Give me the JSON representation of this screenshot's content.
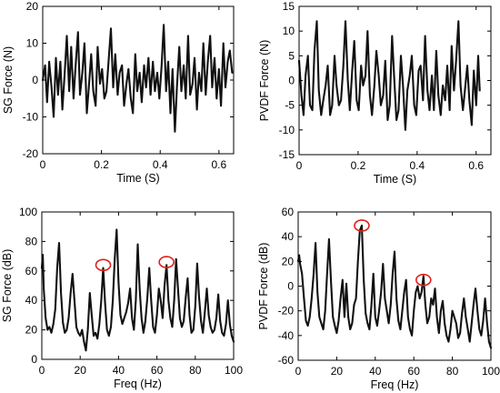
{
  "colors": {
    "trace": "#111111",
    "marker": "#e0201c",
    "axes": "#000000"
  },
  "chart_data": [
    {
      "type": "line",
      "panel": "top-left",
      "xlabel": "Time (S)",
      "ylabel": "SG Force (N)",
      "xlim": [
        0,
        0.65
      ],
      "ylim": [
        -20,
        20
      ],
      "xticks": [
        0,
        0.2,
        0.4,
        0.6
      ],
      "xtick_labels": [
        "0",
        "0.2",
        "0.4",
        "0.6"
      ],
      "yticks": [
        -20,
        -10,
        0,
        10,
        20
      ],
      "ytick_labels": [
        "-20",
        "-10",
        "0",
        "10",
        "20"
      ],
      "grid": false,
      "series": [
        {
          "x": [
            0,
            0.008,
            0.015,
            0.022,
            0.03,
            0.037,
            0.045,
            0.052,
            0.06,
            0.067,
            0.075,
            0.082,
            0.09,
            0.097,
            0.105,
            0.112,
            0.12,
            0.127,
            0.135,
            0.142,
            0.15,
            0.157,
            0.165,
            0.172,
            0.18,
            0.187,
            0.195,
            0.202,
            0.21,
            0.217,
            0.225,
            0.232,
            0.24,
            0.247,
            0.255,
            0.262,
            0.27,
            0.277,
            0.285,
            0.292,
            0.3,
            0.307,
            0.315,
            0.322,
            0.33,
            0.337,
            0.345,
            0.352,
            0.36,
            0.367,
            0.375,
            0.382,
            0.39,
            0.397,
            0.405,
            0.412,
            0.42,
            0.427,
            0.435,
            0.442,
            0.45,
            0.457,
            0.465,
            0.472,
            0.48,
            0.487,
            0.495,
            0.502,
            0.51,
            0.517,
            0.525,
            0.532,
            0.54,
            0.547,
            0.555,
            0.562,
            0.57,
            0.577,
            0.585,
            0.592,
            0.6,
            0.607,
            0.615,
            0.622,
            0.63,
            0.637,
            0.645
          ],
          "y": [
            0,
            4,
            -6,
            5,
            -2,
            -10,
            6,
            -4,
            5,
            -8,
            2,
            12,
            -3,
            9,
            -5,
            4,
            13,
            -4,
            2,
            10,
            -9,
            -2,
            7,
            -3,
            -7,
            9,
            -1,
            3,
            -5,
            -3,
            6,
            14,
            -2,
            7,
            -4,
            2,
            4,
            -7,
            -1,
            3,
            -5,
            -9,
            7,
            -3,
            2,
            -6,
            4,
            -2,
            6,
            -4,
            5,
            -3,
            2,
            -5,
            4,
            15,
            -3,
            5,
            -9,
            3,
            -14,
            -2,
            9,
            -3,
            4,
            -5,
            12,
            -4,
            -1,
            6,
            -8,
            2,
            -3,
            10,
            -4,
            5,
            12,
            -2,
            6,
            -5,
            3,
            -7,
            10,
            -2,
            5,
            8,
            2
          ]
        }
      ]
    },
    {
      "type": "line",
      "panel": "top-right",
      "xlabel": "Time (S)",
      "ylabel": "PVDF Force (N)",
      "xlim": [
        0,
        0.65
      ],
      "ylim": [
        -15,
        15
      ],
      "xticks": [
        0,
        0.2,
        0.4,
        0.6
      ],
      "xtick_labels": [
        "0",
        "0.2",
        "0.4",
        "0.6"
      ],
      "yticks": [
        -15,
        -10,
        -5,
        0,
        5,
        10,
        15
      ],
      "ytick_labels": [
        "-15",
        "-10",
        "-5",
        "0",
        "5",
        "10",
        "15"
      ],
      "grid": false,
      "series": [
        {
          "x": [
            0,
            0.008,
            0.015,
            0.022,
            0.03,
            0.037,
            0.045,
            0.052,
            0.06,
            0.067,
            0.075,
            0.082,
            0.09,
            0.097,
            0.105,
            0.112,
            0.12,
            0.127,
            0.135,
            0.142,
            0.15,
            0.157,
            0.165,
            0.172,
            0.18,
            0.187,
            0.195,
            0.202,
            0.21,
            0.217,
            0.225,
            0.232,
            0.24,
            0.247,
            0.255,
            0.262,
            0.27,
            0.277,
            0.285,
            0.292,
            0.3,
            0.307,
            0.315,
            0.322,
            0.33,
            0.337,
            0.345,
            0.352,
            0.36,
            0.367,
            0.375,
            0.382,
            0.39,
            0.397,
            0.405,
            0.412,
            0.42,
            0.427,
            0.435,
            0.442,
            0.45,
            0.457,
            0.465,
            0.472,
            0.48,
            0.487,
            0.495,
            0.502,
            0.51,
            0.517,
            0.525,
            0.532,
            0.54,
            0.547,
            0.555,
            0.562,
            0.57,
            0.577,
            0.585,
            0.592,
            0.6,
            0.607,
            0.612
          ],
          "y": [
            4,
            -3,
            -7,
            1,
            5,
            -5,
            -6,
            6,
            12,
            -2,
            -7,
            -4,
            -1,
            3,
            -7,
            -5,
            5,
            -1,
            -5,
            -4,
            3,
            12,
            0,
            -6,
            2,
            8,
            -4,
            -6,
            3,
            -1,
            1,
            10,
            -3,
            -7,
            -1,
            6,
            1,
            -5,
            -3,
            4,
            -8,
            -5,
            9,
            1,
            -8,
            -6,
            5,
            -1,
            -10,
            -2,
            1,
            5,
            -5,
            -7,
            2,
            3,
            -4,
            9,
            -2,
            -6,
            1,
            -6,
            6,
            -3,
            -7,
            -1,
            -4,
            3,
            -6,
            7,
            -2,
            4,
            12,
            -1,
            -6,
            -2,
            3,
            -4,
            -9,
            2,
            -5,
            5,
            -2
          ]
        }
      ]
    },
    {
      "type": "line",
      "panel": "bottom-left",
      "xlabel": "Freq (Hz)",
      "ylabel": "SG Force (dB)",
      "xlim": [
        0,
        100
      ],
      "ylim": [
        0,
        100
      ],
      "xticks": [
        0,
        20,
        40,
        60,
        80,
        100
      ],
      "xtick_labels": [
        "0",
        "20",
        "40",
        "60",
        "80",
        "100"
      ],
      "yticks": [
        0,
        20,
        40,
        60,
        80,
        100
      ],
      "ytick_labels": [
        "0",
        "20",
        "40",
        "60",
        "80",
        "100"
      ],
      "grid": false,
      "markers": [
        {
          "x": 32,
          "y": 64
        },
        {
          "x": 65,
          "y": 66
        }
      ],
      "series": [
        {
          "x": [
            0,
            0.5,
            1,
            2,
            3,
            4,
            5,
            6,
            7,
            8,
            9,
            10,
            11,
            12,
            13,
            14,
            15,
            16,
            17,
            18,
            19,
            20,
            21,
            22,
            23,
            24,
            25,
            26,
            27,
            28,
            29,
            30,
            31,
            32,
            33,
            34,
            35,
            36,
            37,
            38,
            39,
            40,
            41,
            42,
            43,
            44,
            45,
            46,
            47,
            48,
            49,
            50,
            51,
            52,
            53,
            54,
            55,
            56,
            57,
            58,
            59,
            60,
            61,
            62,
            63,
            64,
            65,
            66,
            67,
            68,
            69,
            70,
            71,
            72,
            73,
            74,
            75,
            76,
            77,
            78,
            79,
            80,
            81,
            82,
            83,
            84,
            85,
            86,
            87,
            88,
            89,
            90,
            91,
            92,
            93,
            94,
            95,
            96,
            97,
            98,
            99,
            100
          ],
          "y": [
            62,
            71,
            48,
            28,
            20,
            22,
            18,
            24,
            34,
            62,
            79,
            45,
            25,
            18,
            20,
            28,
            45,
            58,
            40,
            22,
            18,
            16,
            20,
            12,
            6,
            20,
            45,
            30,
            16,
            18,
            14,
            24,
            40,
            62,
            38,
            20,
            16,
            22,
            40,
            68,
            88,
            52,
            30,
            24,
            28,
            32,
            38,
            48,
            28,
            20,
            40,
            78,
            48,
            28,
            18,
            26,
            42,
            62,
            40,
            22,
            18,
            30,
            48,
            40,
            28,
            50,
            64,
            40,
            28,
            22,
            40,
            68,
            48,
            28,
            22,
            26,
            42,
            55,
            30,
            18,
            20,
            36,
            65,
            42,
            26,
            18,
            32,
            48,
            30,
            22,
            18,
            20,
            28,
            44,
            26,
            18,
            16,
            24,
            40,
            24,
            16,
            12
          ]
        }
      ]
    },
    {
      "type": "line",
      "panel": "bottom-right",
      "xlabel": "Freq (Hz)",
      "ylabel": "PVDF Force (dB)",
      "xlim": [
        0,
        100
      ],
      "ylim": [
        -60,
        60
      ],
      "xticks": [
        0,
        20,
        40,
        60,
        80,
        100
      ],
      "xtick_labels": [
        "0",
        "20",
        "40",
        "60",
        "80",
        "100"
      ],
      "yticks": [
        -60,
        -40,
        -20,
        0,
        20,
        40,
        60
      ],
      "ytick_labels": [
        "-60",
        "-40",
        "-20",
        "0",
        "20",
        "40",
        "60"
      ],
      "grid": false,
      "markers": [
        {
          "x": 33,
          "y": 49
        },
        {
          "x": 65,
          "y": 5
        }
      ],
      "series": [
        {
          "x": [
            0,
            0.5,
            1,
            2,
            3,
            4,
            5,
            6,
            7,
            8,
            9,
            10,
            11,
            12,
            13,
            14,
            15,
            16,
            17,
            18,
            19,
            20,
            21,
            22,
            23,
            24,
            25,
            26,
            27,
            28,
            29,
            30,
            31,
            32,
            33,
            34,
            35,
            36,
            37,
            38,
            39,
            40,
            41,
            42,
            43,
            44,
            45,
            46,
            47,
            48,
            49,
            50,
            51,
            52,
            53,
            54,
            55,
            56,
            57,
            58,
            59,
            60,
            61,
            62,
            63,
            64,
            65,
            66,
            67,
            68,
            69,
            70,
            71,
            72,
            73,
            74,
            75,
            76,
            77,
            78,
            79,
            80,
            81,
            82,
            83,
            84,
            85,
            86,
            87,
            88,
            89,
            90,
            91,
            92,
            93,
            94,
            95,
            96,
            97,
            98,
            99,
            100
          ],
          "y": [
            20,
            25,
            18,
            10,
            -10,
            -28,
            -32,
            -25,
            -10,
            10,
            35,
            -5,
            -25,
            -30,
            -35,
            -20,
            10,
            38,
            5,
            -25,
            -32,
            -38,
            -28,
            -10,
            5,
            -25,
            2,
            -25,
            -35,
            -30,
            -15,
            -10,
            20,
            45,
            49,
            5,
            -22,
            -30,
            -35,
            -15,
            10,
            -25,
            -32,
            -20,
            -5,
            18,
            -10,
            -20,
            -30,
            -15,
            10,
            28,
            -10,
            -28,
            -35,
            -20,
            -5,
            5,
            -25,
            -35,
            -40,
            -20,
            -5,
            0,
            -10,
            -5,
            8,
            -15,
            -30,
            -25,
            -10,
            -15,
            -2,
            -25,
            -38,
            -20,
            -12,
            -30,
            -40,
            -45,
            -35,
            -20,
            -25,
            -30,
            -42,
            -38,
            -22,
            -10,
            -25,
            -35,
            -45,
            -30,
            -15,
            -2,
            -20,
            -35,
            -40,
            -28,
            -10,
            -30,
            -45,
            -50
          ]
        }
      ]
    }
  ]
}
